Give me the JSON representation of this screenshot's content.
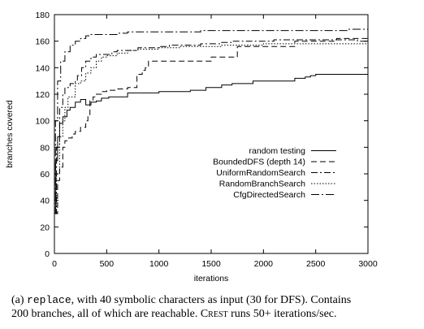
{
  "chart_data": {
    "type": "line",
    "xlabel": "iterations",
    "ylabel": "branches covered",
    "xlim": [
      0,
      3000
    ],
    "ylim": [
      0,
      180
    ],
    "xticks": [
      0,
      500,
      1000,
      1500,
      2000,
      2500,
      3000
    ],
    "yticks": [
      0,
      20,
      40,
      60,
      80,
      100,
      120,
      140,
      160,
      180
    ],
    "grid": false,
    "legend_position": "center-right",
    "series": [
      {
        "name": "random testing",
        "dash": "",
        "x": [
          0,
          10,
          30,
          50,
          80,
          120,
          150,
          200,
          250,
          300,
          350,
          400,
          450,
          500,
          520,
          650,
          700,
          900,
          1000,
          1200,
          1300,
          1450,
          1500,
          1600,
          1700,
          1900,
          2000,
          2300,
          2400,
          2450,
          2500,
          2700,
          2800,
          3000
        ],
        "y": [
          30,
          70,
          88,
          98,
          103,
          108,
          110,
          114,
          116,
          112,
          114,
          115,
          117,
          117,
          118,
          118,
          121,
          121,
          122,
          122,
          123,
          125,
          125,
          127,
          128,
          130,
          130,
          132,
          133,
          134,
          135,
          135,
          135,
          135
        ]
      },
      {
        "name": "BoundedDFS (depth 14)",
        "dash": "7,4",
        "x": [
          0,
          30,
          50,
          80,
          100,
          130,
          170,
          200,
          250,
          300,
          320,
          340,
          370,
          400,
          450,
          500,
          600,
          700,
          790,
          840,
          870,
          900,
          1000,
          1400,
          1500,
          1700,
          1750,
          2200,
          2300,
          2650,
          2700,
          3000
        ],
        "y": [
          30,
          55,
          65,
          80,
          85,
          87,
          90,
          92,
          95,
          100,
          103,
          115,
          118,
          120,
          122,
          123,
          124,
          125,
          135,
          138,
          140,
          145,
          145,
          145,
          148,
          148,
          156,
          156,
          160,
          160,
          162,
          162
        ]
      },
      {
        "name": "UniformRandomSearch",
        "dash": "8,3,2,3",
        "x": [
          0,
          20,
          50,
          80,
          100,
          150,
          200,
          220,
          260,
          300,
          350,
          400,
          450,
          500,
          550,
          600,
          700,
          800,
          900,
          1000,
          1100,
          1200,
          1300,
          1400,
          1500,
          1600,
          1700,
          1800,
          1900,
          2000,
          2100,
          2200,
          2300,
          2500,
          2700,
          2900,
          3000
        ],
        "y": [
          30,
          80,
          110,
          120,
          125,
          128,
          130,
          134,
          140,
          145,
          148,
          150,
          150,
          150,
          152,
          153,
          153,
          155,
          155,
          156,
          157,
          157,
          157,
          158,
          158,
          159,
          160,
          160,
          160,
          160,
          161,
          161,
          161,
          161,
          161,
          160,
          159
        ]
      },
      {
        "name": "RandomBranchSearch",
        "dash": "1.5,2",
        "x": [
          0,
          20,
          50,
          80,
          100,
          130,
          200,
          250,
          300,
          350,
          400,
          450,
          500,
          600,
          700,
          800,
          900,
          1000,
          1200,
          1400,
          1600,
          1800,
          2000,
          2200,
          2500,
          2800,
          3000
        ],
        "y": [
          30,
          60,
          88,
          100,
          110,
          118,
          128,
          130,
          136,
          140,
          145,
          148,
          149,
          151,
          153,
          154,
          154,
          155,
          156,
          156,
          157,
          157,
          158,
          158,
          158,
          158,
          158
        ]
      },
      {
        "name": "CfgDirectedSearch",
        "dash": "10,3,2,3",
        "x": [
          0,
          10,
          30,
          60,
          100,
          150,
          200,
          250,
          300,
          330,
          400,
          600,
          700,
          900,
          1000,
          1300,
          1400,
          1600,
          1800,
          2000,
          2400,
          2600,
          2800,
          3000
        ],
        "y": [
          30,
          100,
          130,
          145,
          152,
          157,
          160,
          162,
          164,
          165,
          165,
          166,
          167,
          167,
          167,
          167,
          168,
          168,
          168,
          168,
          168,
          168,
          169,
          169
        ]
      }
    ]
  },
  "caption": {
    "prefix": "(a) ",
    "code": "replace",
    "line1_rest": ", with 40 symbolic characters as input (30 for DFS). Contains",
    "line2_start": "200 branches, all of which are reachable. ",
    "tool": "Crest",
    "line2_end": " runs 50+ iterations/sec."
  }
}
